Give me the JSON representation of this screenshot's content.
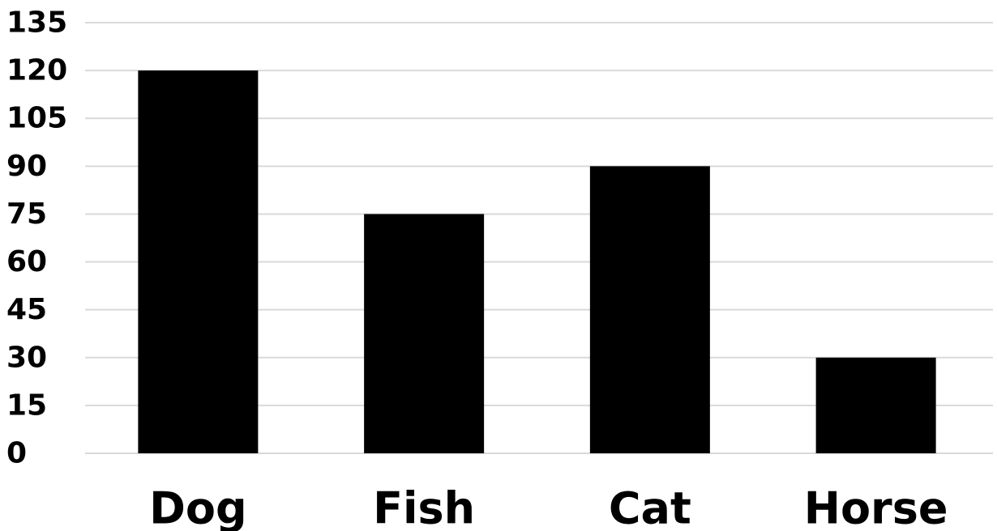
{
  "chart_data": {
    "type": "bar",
    "title": "",
    "xlabel": "",
    "ylabel": "",
    "categories": [
      "Dog",
      "Fish",
      "Cat",
      "Horse"
    ],
    "values": [
      120,
      75,
      90,
      30
    ],
    "ylim": [
      0,
      135
    ],
    "yticks": [
      "0",
      "15",
      "30",
      "45",
      "60",
      "75",
      "90",
      "105",
      "120",
      "135"
    ],
    "grid": true,
    "legend": "none",
    "bar_color": "#000000",
    "grid_color": "#d9d9d9"
  }
}
